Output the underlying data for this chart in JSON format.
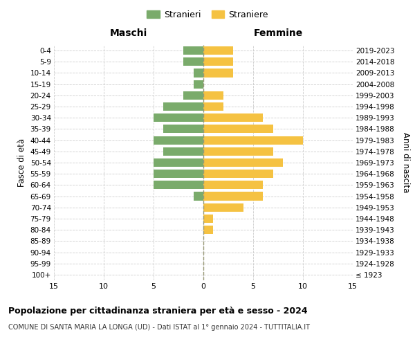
{
  "age_groups": [
    "100+",
    "95-99",
    "90-94",
    "85-89",
    "80-84",
    "75-79",
    "70-74",
    "65-69",
    "60-64",
    "55-59",
    "50-54",
    "45-49",
    "40-44",
    "35-39",
    "30-34",
    "25-29",
    "20-24",
    "15-19",
    "10-14",
    "5-9",
    "0-4"
  ],
  "birth_years": [
    "≤ 1923",
    "1924-1928",
    "1929-1933",
    "1934-1938",
    "1939-1943",
    "1944-1948",
    "1949-1953",
    "1954-1958",
    "1959-1963",
    "1964-1968",
    "1969-1973",
    "1974-1978",
    "1979-1983",
    "1984-1988",
    "1989-1993",
    "1994-1998",
    "1999-2003",
    "2004-2008",
    "2009-2013",
    "2014-2018",
    "2019-2023"
  ],
  "males": [
    0,
    0,
    0,
    0,
    0,
    0,
    0,
    1,
    5,
    5,
    5,
    4,
    5,
    4,
    5,
    4,
    2,
    1,
    1,
    2,
    2
  ],
  "females": [
    0,
    0,
    0,
    0,
    1,
    1,
    4,
    6,
    6,
    7,
    8,
    7,
    10,
    7,
    6,
    2,
    2,
    0,
    3,
    3,
    3
  ],
  "color_males": "#7aab6b",
  "color_females": "#f5c242",
  "title": "Popolazione per cittadinanza straniera per età e sesso - 2024",
  "subtitle": "COMUNE DI SANTA MARIA LA LONGA (UD) - Dati ISTAT al 1° gennaio 2024 - TUTTITALIA.IT",
  "legend_males": "Stranieri",
  "legend_females": "Straniere",
  "xlabel_left": "Maschi",
  "xlabel_right": "Femmine",
  "ylabel_left": "Fasce di età",
  "ylabel_right": "Anni di nascita",
  "xlim": 15,
  "background_color": "#ffffff",
  "grid_color": "#cccccc"
}
